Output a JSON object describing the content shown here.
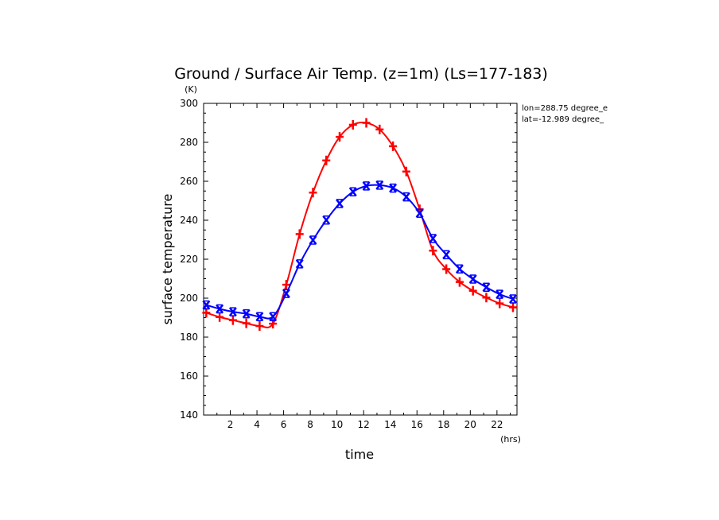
{
  "chart_data": {
    "type": "line",
    "title": "Ground / Surface Air Temp. (z=1m) (Ls=177-183)",
    "xlabel": "time",
    "ylabel": "surface temperature",
    "x_unit": "(hrs)",
    "y_unit": "(K)",
    "xlim": [
      0,
      23.5
    ],
    "ylim": [
      140,
      300
    ],
    "x_ticks": [
      2,
      4,
      6,
      8,
      10,
      12,
      14,
      16,
      18,
      20,
      22
    ],
    "y_ticks": [
      140,
      160,
      180,
      200,
      220,
      240,
      260,
      280,
      300
    ],
    "info_lines": [
      "lon=288.75 degree_e",
      "lat=-12.989 degree_"
    ],
    "x": [
      0.2,
      1.2,
      2.2,
      3.2,
      4.2,
      5.2,
      6.2,
      7.2,
      8.2,
      9.2,
      10.2,
      11.2,
      12.2,
      13.2,
      14.2,
      15.2,
      16.2,
      17.2,
      18.2,
      19.2,
      20.2,
      21.2,
      22.2,
      23.2
    ],
    "series": [
      {
        "color": "#ff0000",
        "marker": "plus",
        "values": [
          192.5,
          190.3,
          188.7,
          187.1,
          185.7,
          186.9,
          206.9,
          232.9,
          254.2,
          270.7,
          282.8,
          289.0,
          290.0,
          286.6,
          278.0,
          265.0,
          245.6,
          224.4,
          214.9,
          208.3,
          203.8,
          200.3,
          197.3,
          195.3
        ]
      },
      {
        "color": "#0000ff",
        "marker": "cross",
        "values": [
          196.5,
          194.5,
          193.0,
          192.0,
          190.5,
          190.5,
          202.4,
          217.6,
          229.8,
          240.1,
          248.6,
          254.6,
          257.6,
          258.0,
          256.5,
          252.0,
          243.6,
          230.6,
          222.3,
          215.0,
          209.8,
          205.6,
          202.0,
          199.6
        ]
      }
    ]
  }
}
